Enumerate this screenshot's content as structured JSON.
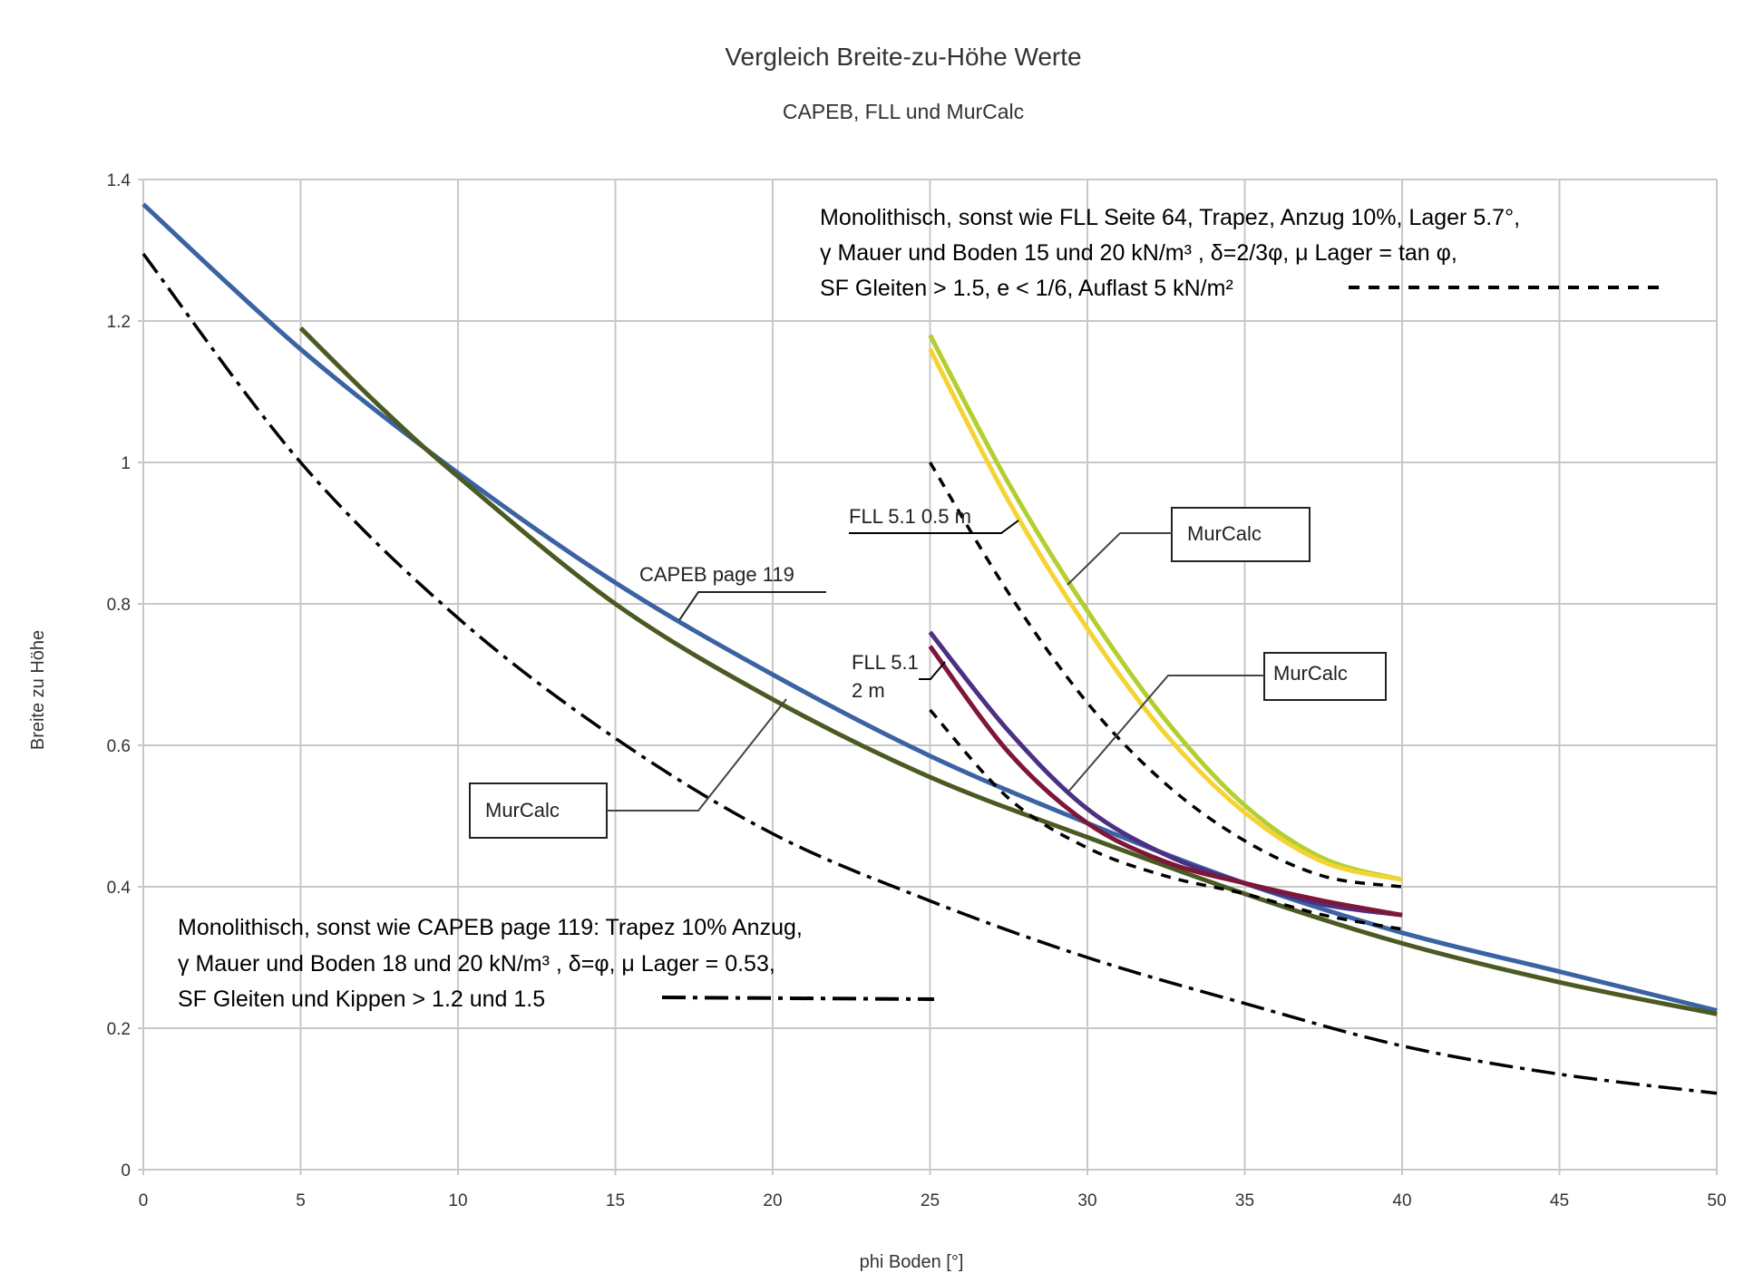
{
  "chart_data": {
    "type": "line",
    "title": "Vergleich Breite-zu-Höhe Werte",
    "subtitle": "CAPEB, FLL und MurCalc",
    "xlabel": "phi Boden [°]",
    "ylabel": "Breite zu Höhe",
    "xlim": [
      0,
      50
    ],
    "ylim": [
      0,
      1.4
    ],
    "xticks": [
      "0",
      "5",
      "10",
      "15",
      "20",
      "25",
      "30",
      "35",
      "40",
      "45",
      "50"
    ],
    "yticks": [
      "0",
      "0.2",
      "0.4",
      "0.6",
      "0.8",
      "1",
      "1.2",
      "1.4"
    ],
    "grid": true,
    "series": [
      {
        "id": "capeb",
        "style": "solid",
        "color": "#3b63a3",
        "x": [
          0,
          5,
          10,
          15,
          20,
          25,
          30,
          35,
          40,
          45,
          50
        ],
        "y": [
          1.365,
          1.16,
          0.985,
          0.83,
          0.7,
          0.585,
          0.49,
          0.405,
          0.335,
          0.28,
          0.225
        ]
      },
      {
        "id": "murcalc-olive",
        "style": "solid",
        "color": "#4a5a22",
        "x": [
          5,
          7.5,
          10,
          15,
          20,
          25,
          30,
          35,
          40,
          45,
          50
        ],
        "y": [
          1.19,
          1.08,
          0.98,
          0.8,
          0.665,
          0.555,
          0.47,
          0.39,
          0.32,
          0.265,
          0.22
        ]
      },
      {
        "id": "capeb-monolith",
        "style": "dashdot",
        "color": "#000000",
        "x": [
          0,
          5,
          10,
          15,
          20,
          25,
          30,
          35,
          40,
          45,
          50
        ],
        "y": [
          1.295,
          1.0,
          0.78,
          0.61,
          0.475,
          0.38,
          0.3,
          0.235,
          0.175,
          0.135,
          0.108
        ]
      },
      {
        "id": "murcalc-green",
        "style": "solid",
        "color": "#b3cf2f",
        "x": [
          25,
          27.5,
          30,
          32.5,
          35,
          37.5,
          40
        ],
        "y": [
          1.18,
          0.97,
          0.79,
          0.635,
          0.515,
          0.44,
          0.41
        ]
      },
      {
        "id": "murcalc-yellow",
        "style": "solid",
        "color": "#f6d335",
        "x": [
          25,
          27.5,
          30,
          32.5,
          35,
          37.5,
          40
        ],
        "y": [
          1.16,
          0.945,
          0.765,
          0.615,
          0.505,
          0.435,
          0.41
        ]
      },
      {
        "id": "fll-05m",
        "style": "dashed",
        "color": "#000000",
        "x": [
          25,
          27.5,
          30,
          32.5,
          35,
          37.5,
          40
        ],
        "y": [
          1.0,
          0.815,
          0.66,
          0.545,
          0.465,
          0.415,
          0.4
        ]
      },
      {
        "id": "murcalc-purple",
        "style": "solid",
        "color": "#4b3083",
        "x": [
          25,
          27.5,
          30,
          32.5,
          35,
          37.5,
          40
        ],
        "y": [
          0.76,
          0.62,
          0.51,
          0.445,
          0.405,
          0.375,
          0.36
        ]
      },
      {
        "id": "murcalc-maroon",
        "style": "solid",
        "color": "#7e1638",
        "x": [
          25,
          27.5,
          30,
          32.5,
          35,
          37.5,
          40
        ],
        "y": [
          0.74,
          0.59,
          0.49,
          0.435,
          0.405,
          0.38,
          0.36
        ]
      },
      {
        "id": "fll-2m",
        "style": "dashed",
        "color": "#000000",
        "x": [
          25,
          27.5,
          30,
          32.5,
          35,
          37.5,
          40
        ],
        "y": [
          0.65,
          0.525,
          0.455,
          0.415,
          0.39,
          0.36,
          0.34
        ]
      }
    ],
    "annotations": {
      "fll_note": [
        "Monolithisch, sonst wie FLL Seite 64, Trapez, Anzug 10%, Lager 5.7°,",
        "γ Mauer und Boden 15 und 20 kN/m³ , δ=2/3φ, μ Lager = tan φ,",
        "SF Gleiten > 1.5, e < 1/6, Auflast 5 kN/m²"
      ],
      "capeb_note": [
        "Monolithisch, sonst wie CAPEB page 119: Trapez 10% Anzug,",
        "γ Mauer und Boden 18 und 20 kN/m³ , δ=φ, μ Lager = 0.53,",
        "SF Gleiten und Kippen > 1.2 und 1.5"
      ],
      "capeb_label": "CAPEB page 119",
      "fll05_label": "FLL 5.1 0.5 m",
      "fll2_label_1": "FLL 5.1",
      "fll2_label_2": "2 m",
      "murcalc_label": "MurCalc"
    }
  }
}
